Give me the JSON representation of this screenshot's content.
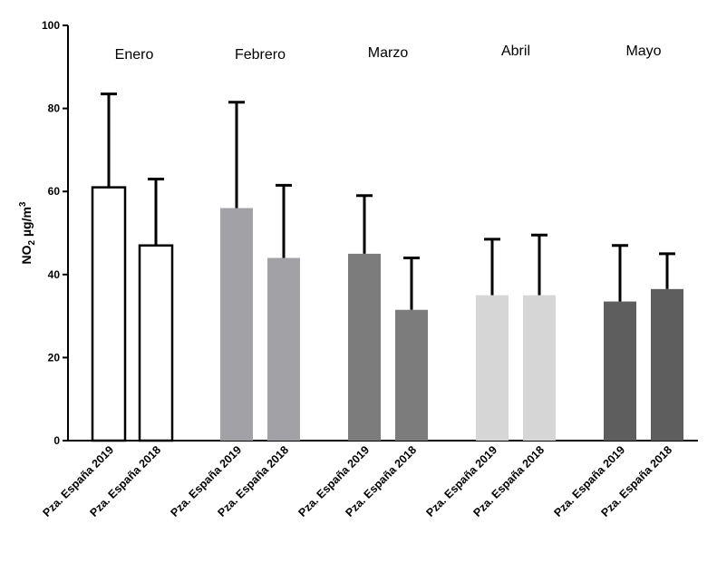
{
  "chart_data": {
    "type": "bar",
    "ylabel": {
      "main": "NO",
      "sub": "2",
      "unit": " µg/m",
      "sup": "3"
    },
    "ylim": [
      0,
      100
    ],
    "yticks": [
      0,
      20,
      40,
      60,
      80,
      100
    ],
    "grid": false,
    "groups": [
      {
        "label": "Enero",
        "color": "#ffffff",
        "bars": [
          {
            "category": "Pza. España 2019",
            "value": 61,
            "error": 22.5
          },
          {
            "category": "Pza. España 2018",
            "value": 47,
            "error": 16
          }
        ]
      },
      {
        "label": "Febrero",
        "color": "#a2a2a6",
        "bars": [
          {
            "category": "Pza. España 2019",
            "value": 56,
            "error": 25.5
          },
          {
            "category": "Pza. España 2018",
            "value": 44,
            "error": 17.5
          }
        ]
      },
      {
        "label": "Marzo",
        "color": "#7c7c7c",
        "bars": [
          {
            "category": "Pza. España 2019",
            "value": 45,
            "error": 14
          },
          {
            "category": "Pza. España 2018",
            "value": 31.5,
            "error": 12.5
          }
        ]
      },
      {
        "label": "Abril",
        "color": "#d6d6d6",
        "bars": [
          {
            "category": "Pza. España 2019",
            "value": 35,
            "error": 13.5
          },
          {
            "category": "Pza. España 2018",
            "value": 35,
            "error": 14.5
          }
        ]
      },
      {
        "label": "Mayo",
        "color": "#5e5e5e",
        "bars": [
          {
            "category": "Pza. España 2019",
            "value": 33.5,
            "error": 13.5
          },
          {
            "category": "Pza. España 2018",
            "value": 36.5,
            "error": 8.5
          }
        ]
      }
    ]
  }
}
